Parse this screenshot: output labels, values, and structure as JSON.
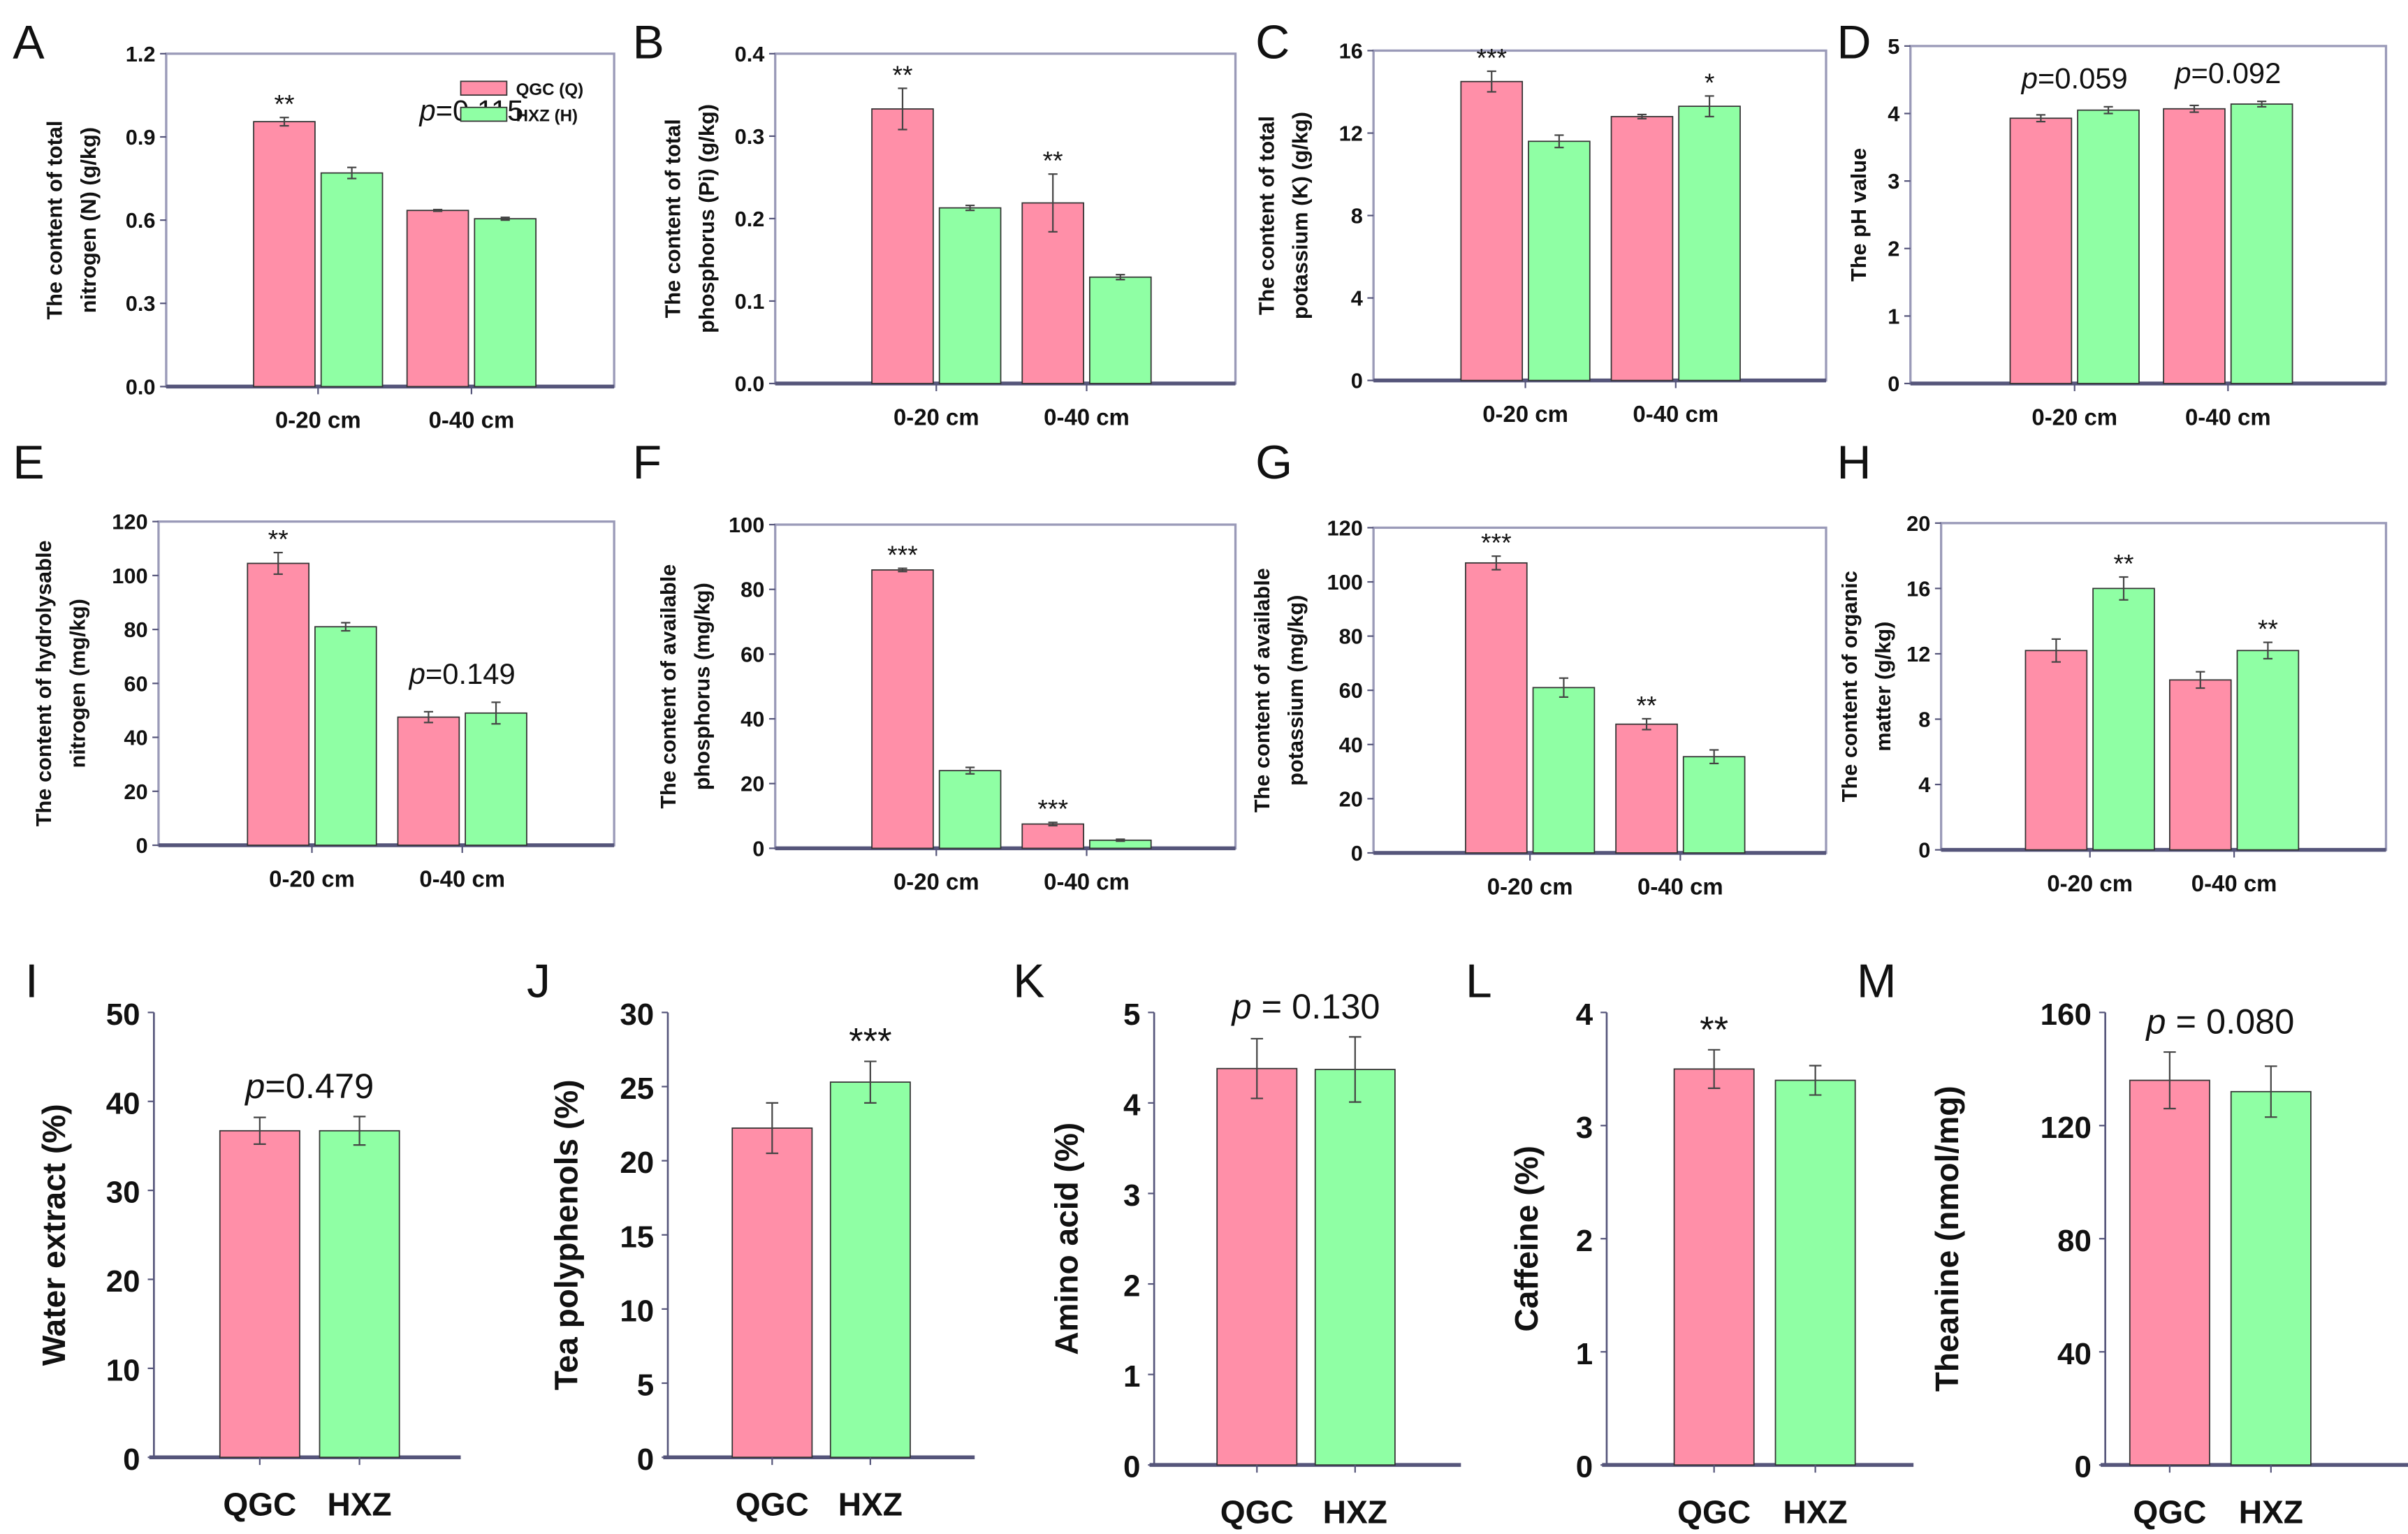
{
  "colors": {
    "QGC": "#ff8fa8",
    "HXZ": "#8fffa4",
    "bar_stroke": "#333333",
    "axis": "#55557a"
  },
  "legend": {
    "entries": [
      {
        "label": "QGC (Q)",
        "color": "#ff8fa8"
      },
      {
        "label": "HXZ (H)",
        "color": "#8fffa4"
      }
    ]
  },
  "chart_data": [
    {
      "panel": "A",
      "type": "bar",
      "ylabel": [
        "The content of total",
        "nitrogen (N) (g/kg)"
      ],
      "ylim": [
        0,
        1.2
      ],
      "yticks": [
        "0.0",
        "0.3",
        "0.6",
        "0.9",
        "1.2"
      ],
      "categories": [
        "0-20 cm",
        "0-40 cm"
      ],
      "series": [
        {
          "name": "QGC (Q)",
          "values": [
            0.955,
            0.635
          ],
          "errors": [
            0.015,
            0.003
          ]
        },
        {
          "name": "HXZ (H)",
          "values": [
            0.77,
            0.605
          ],
          "errors": [
            0.02,
            0.005
          ]
        }
      ],
      "significance": [
        {
          "category": 0,
          "series": 0,
          "label": "**"
        }
      ],
      "p_values": [
        {
          "category": 1,
          "symbol": "p",
          "value": "=0.115"
        }
      ]
    },
    {
      "panel": "B",
      "type": "bar",
      "ylabel": [
        "The content of total",
        "phosphorus (Pi) (g/kg)"
      ],
      "ylim": [
        0,
        0.4
      ],
      "yticks": [
        "0.0",
        "0.1",
        "0.2",
        "0.3",
        "0.4"
      ],
      "categories": [
        "0-20 cm",
        "0-40 cm"
      ],
      "series": [
        {
          "values": [
            0.333,
            0.219
          ],
          "errors": [
            0.025,
            0.035
          ]
        },
        {
          "values": [
            0.213,
            0.129
          ],
          "errors": [
            0.003,
            0.003
          ]
        }
      ],
      "significance": [
        {
          "category": 0,
          "series": 0,
          "label": "**"
        },
        {
          "category": 1,
          "series": 0,
          "label": "**"
        }
      ],
      "p_values": []
    },
    {
      "panel": "C",
      "type": "bar",
      "ylabel": [
        "The content of total",
        "potassium (K) (g/kg)"
      ],
      "ylim": [
        0,
        16
      ],
      "yticks": [
        "0",
        "4",
        "8",
        "12",
        "16"
      ],
      "categories": [
        "0-20 cm",
        "0-40 cm"
      ],
      "series": [
        {
          "values": [
            14.5,
            12.8
          ],
          "errors": [
            0.5,
            0.1
          ]
        },
        {
          "values": [
            11.6,
            13.3
          ],
          "errors": [
            0.3,
            0.5
          ]
        }
      ],
      "significance": [
        {
          "category": 0,
          "series": 0,
          "label": "***"
        },
        {
          "category": 1,
          "series": 1,
          "label": "*"
        }
      ],
      "p_values": []
    },
    {
      "panel": "D",
      "type": "bar",
      "ylabel": [
        "The pH value"
      ],
      "ylim": [
        0,
        5
      ],
      "yticks": [
        "0",
        "1",
        "2",
        "3",
        "4",
        "5"
      ],
      "categories": [
        "0-20 cm",
        "0-40 cm"
      ],
      "series": [
        {
          "values": [
            3.93,
            4.07
          ],
          "errors": [
            0.05,
            0.05
          ]
        },
        {
          "values": [
            4.05,
            4.14
          ],
          "errors": [
            0.05,
            0.04
          ]
        }
      ],
      "significance": [],
      "p_values": [
        {
          "category": 0,
          "symbol": "p",
          "value": "=0.059"
        },
        {
          "category": 1,
          "symbol": "p",
          "value": "=0.092"
        }
      ]
    },
    {
      "panel": "E",
      "type": "bar",
      "ylabel": [
        "The content of hydrolysable",
        "nitrogen (mg/kg)"
      ],
      "ylim": [
        0,
        120
      ],
      "yticks": [
        "0",
        "20",
        "40",
        "60",
        "80",
        "100",
        "120"
      ],
      "categories": [
        "0-20 cm",
        "0-40 cm"
      ],
      "series": [
        {
          "values": [
            104.5,
            47.5
          ],
          "errors": [
            4,
            2
          ]
        },
        {
          "values": [
            81,
            49
          ],
          "errors": [
            1.5,
            4
          ]
        }
      ],
      "significance": [
        {
          "category": 0,
          "series": 0,
          "label": "**"
        }
      ],
      "p_values": [
        {
          "category": 1,
          "symbol": "p",
          "value": "=0.149"
        }
      ]
    },
    {
      "panel": "F",
      "type": "bar",
      "ylabel": [
        "The content of available",
        "phosphorus (mg/kg)"
      ],
      "ylim": [
        0,
        100
      ],
      "yticks": [
        "0",
        "20",
        "40",
        "60",
        "80",
        "100"
      ],
      "categories": [
        "0-20 cm",
        "0-40 cm"
      ],
      "series": [
        {
          "values": [
            86,
            7.5
          ],
          "errors": [
            0.5,
            0.5
          ]
        },
        {
          "values": [
            24,
            2.5
          ],
          "errors": [
            1,
            0.3
          ]
        }
      ],
      "significance": [
        {
          "category": 0,
          "series": 0,
          "label": "***"
        },
        {
          "category": 1,
          "series": 0,
          "label": "***"
        }
      ],
      "p_values": []
    },
    {
      "panel": "G",
      "type": "bar",
      "ylabel": [
        "The content of available",
        "potassium (mg/kg)"
      ],
      "ylim": [
        0,
        120
      ],
      "yticks": [
        "0",
        "20",
        "40",
        "60",
        "80",
        "100",
        "120"
      ],
      "categories": [
        "0-20 cm",
        "0-40 cm"
      ],
      "series": [
        {
          "values": [
            107,
            47.5
          ],
          "errors": [
            2.5,
            2
          ]
        },
        {
          "values": [
            61,
            35.5
          ],
          "errors": [
            3.5,
            2.5
          ]
        }
      ],
      "significance": [
        {
          "category": 0,
          "series": 0,
          "label": "***"
        },
        {
          "category": 1,
          "series": 0,
          "label": "**"
        }
      ],
      "p_values": []
    },
    {
      "panel": "H",
      "type": "bar",
      "ylabel": [
        "The content of organic",
        "matter (g/kg)"
      ],
      "ylim": [
        0,
        20
      ],
      "yticks": [
        "0",
        "4",
        "8",
        "12",
        "16",
        "20"
      ],
      "categories": [
        "0-20 cm",
        "0-40 cm"
      ],
      "series": [
        {
          "values": [
            12.2,
            10.4
          ],
          "errors": [
            0.7,
            0.5
          ]
        },
        {
          "values": [
            16,
            12.2
          ],
          "errors": [
            0.7,
            0.5
          ]
        }
      ],
      "significance": [
        {
          "category": 0,
          "series": 1,
          "label": "**"
        },
        {
          "category": 1,
          "series": 1,
          "label": "**"
        }
      ],
      "p_values": []
    },
    {
      "panel": "I",
      "type": "bar",
      "ylabel": [
        "Water extract (%)"
      ],
      "ylim": [
        0,
        50
      ],
      "yticks": [
        "0",
        "10",
        "20",
        "30",
        "40",
        "50"
      ],
      "categories": [
        "QGC",
        "HXZ"
      ],
      "values": [
        36.7,
        36.7
      ],
      "errors": [
        1.5,
        1.6
      ],
      "significance": [],
      "p_value": {
        "symbol": "p",
        "value": "=0.479"
      }
    },
    {
      "panel": "J",
      "type": "bar",
      "ylabel": [
        "Tea polyphenols (%)"
      ],
      "ylim": [
        0,
        30
      ],
      "yticks": [
        "0",
        "5",
        "10",
        "15",
        "20",
        "25",
        "30"
      ],
      "categories": [
        "QGC",
        "HXZ"
      ],
      "values": [
        22.2,
        25.3
      ],
      "errors": [
        1.7,
        1.4
      ],
      "significance": [
        {
          "category": 1,
          "label": "***"
        }
      ]
    },
    {
      "panel": "K",
      "type": "bar",
      "ylabel": [
        "Amino acid (%)"
      ],
      "ylim": [
        0,
        5
      ],
      "yticks": [
        "0",
        "1",
        "2",
        "3",
        "4",
        "5"
      ],
      "categories": [
        "QGC",
        "HXZ"
      ],
      "values": [
        4.38,
        4.37
      ],
      "errors": [
        0.33,
        0.36
      ],
      "significance": [],
      "p_value": {
        "symbol": "p",
        "value": " = 0.130"
      }
    },
    {
      "panel": "L",
      "type": "bar",
      "ylabel": [
        "Caffeine (%)"
      ],
      "ylim": [
        0,
        4
      ],
      "yticks": [
        "0",
        "1",
        "2",
        "3",
        "4"
      ],
      "categories": [
        "QGC",
        "HXZ"
      ],
      "values": [
        3.5,
        3.4
      ],
      "errors": [
        0.17,
        0.13
      ],
      "significance": [
        {
          "category": 0,
          "label": "**"
        }
      ]
    },
    {
      "panel": "M",
      "type": "bar",
      "ylabel": [
        "Theanine (nmol/mg)"
      ],
      "ylim": [
        0,
        160
      ],
      "yticks": [
        "0",
        "40",
        "80",
        "120",
        "160"
      ],
      "categories": [
        "QGC",
        "HXZ"
      ],
      "values": [
        136,
        132
      ],
      "errors": [
        10,
        9
      ],
      "significance": [],
      "p_value": {
        "symbol": "p",
        "value": " = 0.080"
      }
    }
  ]
}
